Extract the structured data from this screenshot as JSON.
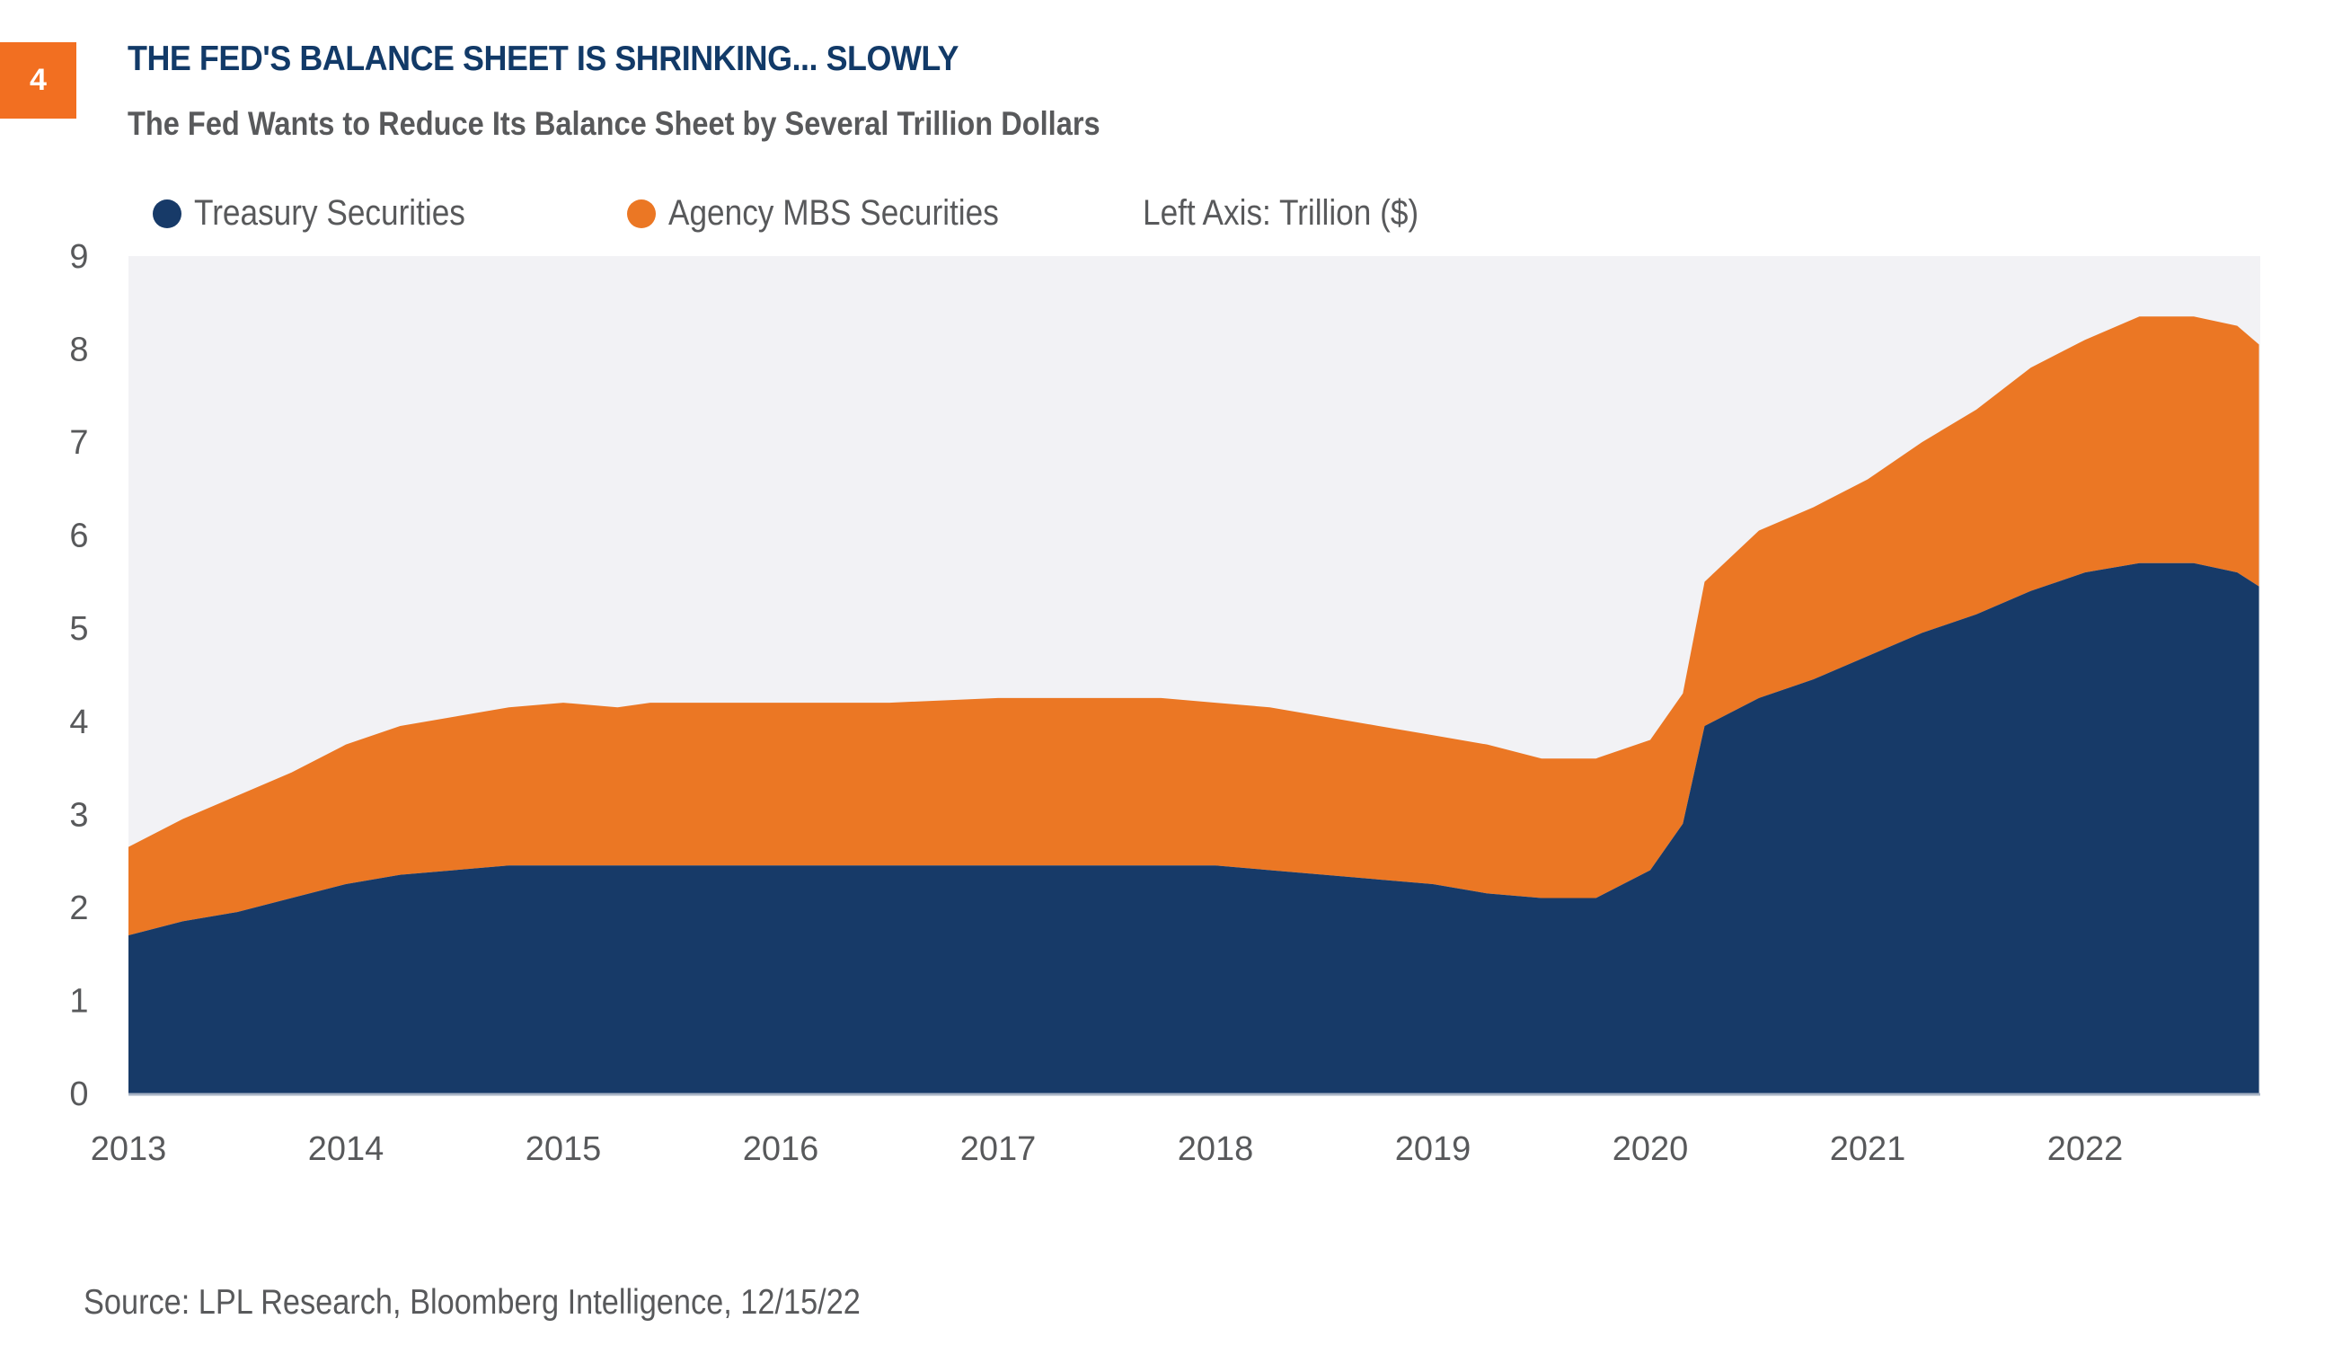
{
  "figure": {
    "number": "4",
    "title": "THE FED'S BALANCE SHEET IS SHRINKING... SLOWLY",
    "subtitle": "The Fed Wants to Reduce Its Balance Sheet by Several Trillion Dollars",
    "source": "Source: LPL Research, Bloomberg Intelligence,  12/15/22"
  },
  "legend": {
    "treasury": "Treasury Securities",
    "mbs": "Agency MBS Securities",
    "axis_note": "Left Axis: Trillion ($)"
  },
  "colors": {
    "treasury": "#173a68",
    "mbs": "#eb7724",
    "badge": "#f26f21",
    "plot_bg": "#f2f2f5",
    "title": "#123a68",
    "text": "#58595b"
  },
  "chart_data": {
    "type": "area",
    "stacked": true,
    "title": "THE FED'S BALANCE SHEET IS SHRINKING... SLOWLY",
    "subtitle": "The Fed Wants to Reduce Its Balance Sheet by Several Trillion Dollars",
    "xlabel": "",
    "ylabel": "Trillion ($)",
    "ylim": [
      0,
      9
    ],
    "xlim": [
      2013,
      2022.8
    ],
    "y_ticks": [
      "0",
      "1",
      "2",
      "3",
      "4",
      "5",
      "6",
      "7",
      "8",
      "9"
    ],
    "x_ticks": [
      "2013",
      "2014",
      "2015",
      "2016",
      "2017",
      "2018",
      "2019",
      "2020",
      "2021",
      "2022"
    ],
    "grid": false,
    "legend_position": "top-left",
    "x": [
      2013.0,
      2013.25,
      2013.5,
      2013.75,
      2014.0,
      2014.25,
      2014.5,
      2014.75,
      2015.0,
      2015.25,
      2015.4,
      2015.75,
      2016.0,
      2016.5,
      2017.0,
      2017.5,
      2017.75,
      2018.0,
      2018.25,
      2018.5,
      2018.75,
      2019.0,
      2019.25,
      2019.5,
      2019.75,
      2020.0,
      2020.15,
      2020.25,
      2020.5,
      2020.75,
      2021.0,
      2021.25,
      2021.5,
      2021.75,
      2022.0,
      2022.25,
      2022.5,
      2022.7,
      2022.8
    ],
    "series": [
      {
        "name": "Treasury Securities",
        "values": [
          1.7,
          1.85,
          1.95,
          2.1,
          2.25,
          2.35,
          2.4,
          2.45,
          2.45,
          2.45,
          2.45,
          2.45,
          2.45,
          2.45,
          2.45,
          2.45,
          2.45,
          2.45,
          2.4,
          2.35,
          2.3,
          2.25,
          2.15,
          2.1,
          2.1,
          2.4,
          2.9,
          3.95,
          4.25,
          4.45,
          4.7,
          4.95,
          5.15,
          5.4,
          5.6,
          5.7,
          5.7,
          5.6,
          5.45
        ]
      },
      {
        "name": "Agency MBS Securities",
        "values": [
          0.95,
          1.1,
          1.25,
          1.35,
          1.5,
          1.6,
          1.65,
          1.7,
          1.75,
          1.7,
          1.75,
          1.75,
          1.75,
          1.75,
          1.8,
          1.8,
          1.8,
          1.75,
          1.75,
          1.7,
          1.65,
          1.6,
          1.6,
          1.5,
          1.5,
          1.4,
          1.4,
          1.55,
          1.8,
          1.85,
          1.9,
          2.05,
          2.2,
          2.4,
          2.5,
          2.65,
          2.65,
          2.65,
          2.6
        ]
      }
    ]
  }
}
